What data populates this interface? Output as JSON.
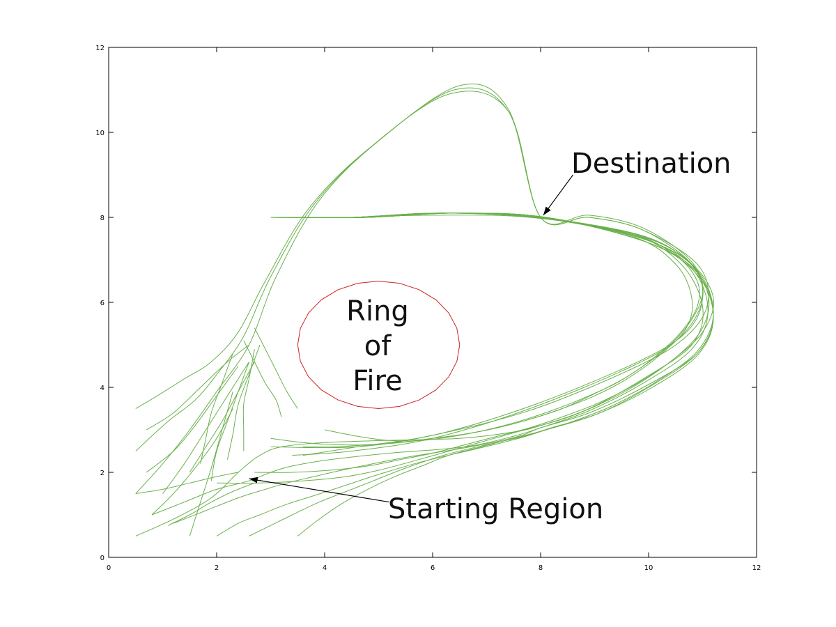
{
  "chart_data": {
    "type": "line",
    "title": "",
    "xlabel": "",
    "ylabel": "",
    "xlim": [
      0,
      12
    ],
    "ylim": [
      0,
      12
    ],
    "x_ticks": [
      "0",
      "2",
      "4",
      "6",
      "8",
      "10",
      "12"
    ],
    "y_ticks": [
      "0",
      "2",
      "4",
      "6",
      "8",
      "10",
      "12"
    ],
    "grid": false,
    "legend": "none",
    "colors": {
      "trajectory": "#6ab04c",
      "ring": "#cc2222",
      "axes": "#000000",
      "text": "#111111"
    },
    "destination": [
      8.0,
      8.0
    ],
    "ring": {
      "center": [
        5.0,
        5.0
      ],
      "radius_x": 1.5,
      "radius_y": 1.5
    },
    "annotations": [
      {
        "id": "destination",
        "text": "Destination",
        "arrow_tail": [
          8.6,
          9.0
        ],
        "arrow_head": [
          8.05,
          8.05
        ]
      },
      {
        "id": "start",
        "text": "Starting Region",
        "arrow_tail": [
          5.2,
          1.3
        ],
        "arrow_head": [
          2.6,
          1.85
        ]
      },
      {
        "id": "ring",
        "lines": [
          "Ring",
          "of",
          "Fire"
        ]
      }
    ],
    "series": [
      {
        "x": [
          0.5,
          0.9,
          1.4,
          1.9,
          2.4,
          2.9,
          3.7,
          4.8,
          6.3,
          7.4,
          8.0,
          8.9,
          9.9,
          10.8,
          11.0,
          10.7,
          9.8,
          7.9,
          6.1,
          4.6,
          3.6
        ],
        "y": [
          3.5,
          3.8,
          4.2,
          4.6,
          5.3,
          6.5,
          8.2,
          9.6,
          10.9,
          10.5,
          8.0,
          8.0,
          7.7,
          6.9,
          6.1,
          5.3,
          4.6,
          3.6,
          2.9,
          2.6,
          2.4
        ]
      },
      {
        "x": [
          0.5,
          1.1,
          1.6,
          2.0,
          2.5,
          3.0,
          3.8,
          4.9,
          6.4,
          7.4,
          8.0,
          8.9,
          9.9,
          10.8,
          11.0,
          10.6,
          9.7,
          7.8,
          6.0,
          4.5,
          3.4
        ],
        "y": [
          2.5,
          3.2,
          3.7,
          4.3,
          5.2,
          6.6,
          8.3,
          9.7,
          11.0,
          10.5,
          8.0,
          8.05,
          7.75,
          6.95,
          6.1,
          5.2,
          4.5,
          3.5,
          2.8,
          2.5,
          2.4
        ]
      },
      {
        "x": [
          0.5,
          1.0,
          1.5,
          2.0,
          2.6,
          3.1,
          3.9,
          5.0,
          6.5,
          7.4,
          8.0,
          8.9,
          9.9,
          10.9,
          11.1,
          10.7,
          9.8,
          7.9,
          6.1,
          4.6,
          3.0
        ],
        "y": [
          1.5,
          2.2,
          3.0,
          3.9,
          5.0,
          6.6,
          8.4,
          9.8,
          11.1,
          10.55,
          8.0,
          8.0,
          7.7,
          6.9,
          6.0,
          5.2,
          4.5,
          3.5,
          2.9,
          2.6,
          2.6
        ]
      },
      {
        "x": [
          0.5,
          1.2,
          1.9,
          2.4,
          2.8,
          3.2,
          4.0,
          5.1,
          6.5,
          7.5,
          8.0,
          8.9,
          9.9,
          10.8,
          11.0,
          10.6,
          9.7,
          7.8,
          6.0,
          4.4,
          3.2
        ],
        "y": [
          0.5,
          0.9,
          1.4,
          2.0,
          2.4,
          2.6,
          2.7,
          2.75,
          2.8,
          2.95,
          3.1,
          3.5,
          4.2,
          5.0,
          5.9,
          6.9,
          7.6,
          8.0,
          8.05,
          8.0,
          8.0
        ]
      },
      {
        "x": [
          0.8,
          1.4,
          2.0,
          2.6,
          3.0,
          3.4,
          4.1,
          5.2,
          6.6,
          7.5,
          8.0,
          8.9,
          9.9,
          10.8,
          11.1,
          10.8,
          9.9,
          8.0,
          6.2,
          4.6,
          3.0
        ],
        "y": [
          1.0,
          1.3,
          1.6,
          1.8,
          2.0,
          2.15,
          2.3,
          2.45,
          2.6,
          2.85,
          3.05,
          3.45,
          4.1,
          4.9,
          5.8,
          6.8,
          7.5,
          8.0,
          8.1,
          8.0,
          8.0
        ]
      },
      {
        "x": [
          1.2,
          1.8,
          2.4,
          2.9,
          3.3,
          3.8,
          4.5,
          5.5,
          6.7,
          7.6,
          8.0,
          8.9,
          9.9,
          10.9,
          11.2,
          10.9,
          10.0,
          8.1,
          6.4,
          4.8,
          3.4
        ],
        "y": [
          0.8,
          1.1,
          1.4,
          1.6,
          1.75,
          1.9,
          2.1,
          2.35,
          2.6,
          2.85,
          3.05,
          3.4,
          4.0,
          4.8,
          5.7,
          6.7,
          7.4,
          8.0,
          8.1,
          8.0,
          8.0
        ]
      },
      {
        "x": [
          2.0,
          2.4,
          2.8,
          3.3,
          3.8,
          4.4,
          5.0,
          5.8,
          6.8,
          7.6,
          8.1,
          9.0,
          10.0,
          10.9,
          11.2,
          10.9,
          10.0,
          8.1,
          6.4,
          4.8,
          3.4
        ],
        "y": [
          0.5,
          0.8,
          1.0,
          1.25,
          1.45,
          1.7,
          1.95,
          2.25,
          2.55,
          2.8,
          3.0,
          3.35,
          3.95,
          4.75,
          5.65,
          6.65,
          7.4,
          8.0,
          8.1,
          8.0,
          8.0
        ]
      },
      {
        "x": [
          2.6,
          3.0,
          3.4,
          3.9,
          4.4,
          4.9,
          5.5,
          6.2,
          7.0,
          7.7,
          8.2,
          9.1,
          10.0,
          10.9,
          11.2,
          10.9,
          10.0,
          8.1,
          6.4,
          4.8,
          3.4
        ],
        "y": [
          0.5,
          0.75,
          1.0,
          1.3,
          1.55,
          1.8,
          2.1,
          2.4,
          2.65,
          2.85,
          3.05,
          3.4,
          4.0,
          4.8,
          5.7,
          6.7,
          7.4,
          8.0,
          8.1,
          8.0,
          8.0
        ]
      },
      {
        "x": [
          3.5,
          3.9,
          4.3,
          4.8,
          5.3,
          5.8,
          6.3,
          6.9,
          7.5,
          8.1,
          8.6,
          9.3,
          10.1,
          10.9,
          11.2,
          10.9,
          10.0,
          8.1,
          6.4,
          4.8,
          3.4
        ],
        "y": [
          0.5,
          0.9,
          1.25,
          1.6,
          1.9,
          2.15,
          2.4,
          2.6,
          2.8,
          3.0,
          3.2,
          3.55,
          4.1,
          4.85,
          5.75,
          6.75,
          7.45,
          8.0,
          8.1,
          8.0,
          8.0
        ]
      },
      {
        "x": [
          2.0,
          2.8,
          3.6,
          4.4,
          5.0,
          5.6,
          6.3,
          7.0,
          7.7,
          8.4,
          9.0,
          9.7,
          10.4,
          11.0,
          11.2,
          10.8,
          9.9,
          8.0,
          6.2,
          4.6,
          3.0
        ],
        "y": [
          1.75,
          1.75,
          1.8,
          1.9,
          2.05,
          2.25,
          2.5,
          2.75,
          3.0,
          3.25,
          3.55,
          4.0,
          4.6,
          5.3,
          6.1,
          6.9,
          7.55,
          8.0,
          8.1,
          8.0,
          8.0
        ]
      },
      {
        "x": [
          2.7,
          3.4,
          4.1,
          4.8,
          5.4,
          6.0,
          6.6,
          7.2,
          7.8,
          8.5,
          9.1,
          9.8,
          10.5,
          11.0,
          11.1,
          10.7,
          9.8,
          7.9,
          6.1,
          4.5,
          3.0
        ],
        "y": [
          2.0,
          2.0,
          2.05,
          2.15,
          2.3,
          2.45,
          2.65,
          2.85,
          3.05,
          3.35,
          3.65,
          4.1,
          4.7,
          5.4,
          6.2,
          7.0,
          7.6,
          8.0,
          8.1,
          8.0,
          8.0
        ]
      },
      {
        "x": [
          3.0,
          3.6,
          4.2,
          4.8,
          5.4,
          6.0,
          6.6,
          7.2,
          7.8,
          8.4,
          9.0,
          9.6,
          10.2,
          10.7,
          10.8,
          10.5,
          9.7,
          7.9,
          6.1,
          4.5,
          3.0
        ],
        "y": [
          2.8,
          2.7,
          2.65,
          2.65,
          2.7,
          2.8,
          2.9,
          3.05,
          3.25,
          3.5,
          3.8,
          4.2,
          4.75,
          5.4,
          6.1,
          6.9,
          7.55,
          8.0,
          8.1,
          8.0,
          8.0
        ]
      },
      {
        "x": [
          3.6,
          4.2,
          4.8,
          5.4,
          6.0,
          6.6,
          7.2,
          7.8,
          8.4,
          9.0,
          9.6,
          10.1,
          10.6,
          10.9,
          10.9,
          10.5,
          9.7,
          7.9,
          6.1,
          4.5,
          3.0
        ],
        "y": [
          2.6,
          2.6,
          2.65,
          2.7,
          2.8,
          2.9,
          3.05,
          3.25,
          3.5,
          3.85,
          4.25,
          4.7,
          5.3,
          5.9,
          6.5,
          7.1,
          7.6,
          8.0,
          8.1,
          8.0,
          8.0
        ]
      },
      {
        "x": [
          4.0,
          4.6,
          5.2,
          5.8,
          6.4,
          7.0,
          7.6,
          8.2,
          8.8,
          9.4,
          9.9,
          10.4,
          10.8,
          11.0,
          10.9,
          10.5,
          9.7,
          7.9,
          6.1,
          4.5,
          3.0
        ],
        "y": [
          3.0,
          2.85,
          2.75,
          2.75,
          2.85,
          3.0,
          3.2,
          3.45,
          3.75,
          4.1,
          4.5,
          5.0,
          5.6,
          6.2,
          6.7,
          7.2,
          7.6,
          8.0,
          8.1,
          8.0,
          8.0
        ]
      }
    ],
    "short_paths": [
      {
        "x": [
          0.7,
          1.2,
          1.7,
          2.2,
          2.6
        ],
        "y": [
          3.0,
          3.4,
          4.0,
          4.6,
          5.0
        ]
      },
      {
        "x": [
          0.7,
          1.2,
          1.6,
          2.0,
          2.4
        ],
        "y": [
          2.0,
          2.5,
          3.1,
          3.8,
          4.5
        ]
      },
      {
        "x": [
          0.8,
          1.2,
          1.6,
          2.0,
          2.3
        ],
        "y": [
          1.0,
          1.5,
          2.1,
          2.8,
          3.5
        ]
      },
      {
        "x": [
          1.0,
          1.4,
          1.8,
          2.2,
          2.6
        ],
        "y": [
          1.5,
          2.2,
          3.0,
          3.8,
          4.6
        ]
      },
      {
        "x": [
          1.5,
          1.8,
          2.1,
          2.4,
          2.7
        ],
        "y": [
          2.0,
          2.6,
          3.2,
          3.9,
          4.6
        ]
      },
      {
        "x": [
          1.5,
          1.7,
          1.9,
          2.1,
          2.3
        ],
        "y": [
          0.5,
          1.3,
          2.1,
          3.0,
          3.9
        ]
      },
      {
        "x": [
          1.7,
          1.8,
          1.9,
          2.1,
          2.3
        ],
        "y": [
          2.2,
          2.8,
          3.4,
          4.1,
          4.8
        ]
      },
      {
        "x": [
          1.9,
          2.0,
          2.2,
          2.4,
          2.6
        ],
        "y": [
          1.8,
          2.5,
          3.2,
          3.9,
          4.6
        ]
      },
      {
        "x": [
          2.2,
          2.3,
          2.4,
          2.6,
          2.8
        ],
        "y": [
          2.3,
          2.9,
          3.6,
          4.3,
          5.0
        ]
      },
      {
        "x": [
          2.5,
          2.5,
          2.5,
          2.6,
          2.7
        ],
        "y": [
          2.5,
          3.0,
          3.6,
          4.2,
          4.9
        ]
      },
      {
        "x": [
          3.2,
          3.1,
          2.9,
          2.7,
          2.5
        ],
        "y": [
          3.3,
          3.7,
          4.1,
          4.6,
          5.1
        ]
      },
      {
        "x": [
          3.5,
          3.3,
          3.1,
          2.9,
          2.7
        ],
        "y": [
          3.5,
          3.9,
          4.4,
          4.9,
          5.4
        ]
      },
      {
        "x": [
          1.1,
          1.5,
          1.9,
          2.3,
          2.7
        ],
        "y": [
          0.75,
          1.0,
          1.3,
          1.55,
          1.75
        ]
      },
      {
        "x": [
          0.5,
          1.0,
          1.5,
          2.0,
          2.4
        ],
        "y": [
          1.5,
          1.6,
          1.75,
          1.9,
          2.0
        ]
      }
    ]
  }
}
